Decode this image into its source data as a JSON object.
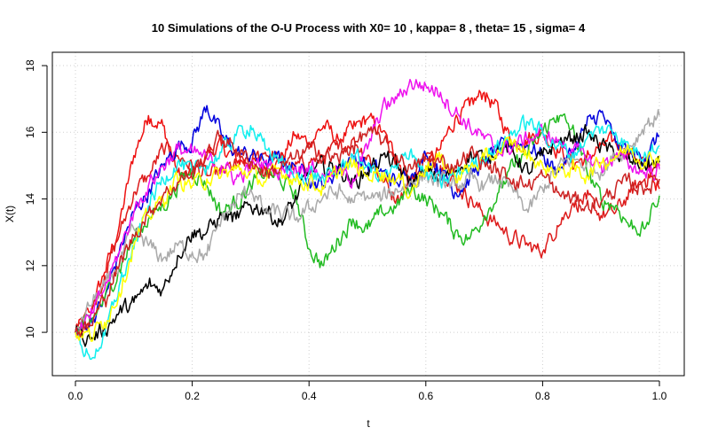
{
  "chart_data": {
    "type": "line",
    "title": "10 Simulations of the O-U Process with X0= 10 , kappa= 8 , theta= 15 , sigma= 4",
    "xlabel": "t",
    "ylabel": "X(t)",
    "xlim": [
      0,
      1
    ],
    "ylim": [
      8.7,
      18.4
    ],
    "x_ticks": [
      0.0,
      0.2,
      0.4,
      0.6,
      0.8,
      1.0
    ],
    "x_tick_labels": [
      "0.0",
      "0.2",
      "0.4",
      "0.6",
      "0.8",
      "1.0"
    ],
    "y_ticks": [
      10,
      12,
      14,
      16,
      18
    ],
    "y_tick_labels": [
      "10",
      "12",
      "14",
      "16",
      "18"
    ],
    "grid": true,
    "x": [
      0.0,
      0.025,
      0.05,
      0.075,
      0.1,
      0.125,
      0.15,
      0.175,
      0.2,
      0.225,
      0.25,
      0.275,
      0.3,
      0.325,
      0.35,
      0.375,
      0.4,
      0.425,
      0.45,
      0.475,
      0.5,
      0.525,
      0.55,
      0.575,
      0.6,
      0.625,
      0.65,
      0.675,
      0.7,
      0.725,
      0.75,
      0.775,
      0.8,
      0.825,
      0.85,
      0.875,
      0.9,
      0.925,
      0.95,
      0.975,
      1.0
    ],
    "series": [
      {
        "name": "red",
        "color": "#ee1111",
        "values": [
          10.0,
          10.6,
          11.8,
          13.2,
          15.3,
          16.5,
          16.2,
          14.8,
          14.6,
          15.4,
          15.6,
          15.2,
          15.1,
          14.9,
          15.1,
          15.9,
          15.7,
          16.2,
          15.8,
          16.1,
          16.4,
          16.0,
          15.2,
          14.6,
          14.9,
          15.5,
          16.4,
          16.8,
          17.2,
          16.6,
          15.6,
          15.8,
          16.0,
          15.5,
          15.1,
          15.2,
          15.6,
          15.7,
          15.4,
          15.1,
          14.3
        ]
      },
      {
        "name": "red-2",
        "color": "#dd1a1a",
        "values": [
          10.0,
          10.5,
          11.7,
          12.9,
          14.2,
          14.7,
          15.5,
          15.3,
          15.0,
          14.7,
          14.8,
          15.0,
          15.1,
          15.4,
          15.2,
          14.9,
          15.1,
          15.3,
          15.5,
          15.8,
          15.3,
          14.6,
          14.0,
          14.6,
          15.3,
          15.0,
          14.5,
          14.0,
          13.5,
          13.2,
          12.8,
          12.6,
          12.4,
          13.2,
          13.8,
          14.0,
          13.5,
          13.6,
          14.2,
          14.6,
          15.0
        ]
      },
      {
        "name": "blue",
        "color": "#0000dd",
        "values": [
          10.0,
          10.3,
          11.0,
          12.4,
          13.6,
          14.2,
          15.0,
          15.6,
          15.7,
          16.8,
          15.9,
          15.4,
          15.3,
          15.1,
          15.2,
          15.0,
          14.6,
          14.4,
          14.9,
          15.3,
          15.0,
          14.8,
          14.5,
          14.7,
          15.3,
          14.9,
          14.2,
          14.6,
          15.2,
          15.5,
          15.7,
          15.6,
          15.3,
          14.8,
          15.4,
          16.2,
          16.6,
          15.7,
          15.4,
          15.2,
          15.9
        ]
      },
      {
        "name": "green",
        "color": "#22bb22",
        "values": [
          10.0,
          10.3,
          11.0,
          11.9,
          12.8,
          13.4,
          13.8,
          14.4,
          14.9,
          14.4,
          13.6,
          13.9,
          14.4,
          14.8,
          14.6,
          14.2,
          12.5,
          12.0,
          12.8,
          13.4,
          13.1,
          13.6,
          13.8,
          14.3,
          14.0,
          13.6,
          13.0,
          12.8,
          13.5,
          14.2,
          15.0,
          15.4,
          16.0,
          16.5,
          16.1,
          14.9,
          14.0,
          13.8,
          13.2,
          13.1,
          14.1
        ]
      },
      {
        "name": "black",
        "color": "#000000",
        "values": [
          10.0,
          9.8,
          10.1,
          10.6,
          10.9,
          11.4,
          11.3,
          12.3,
          13.0,
          13.0,
          13.5,
          13.4,
          13.8,
          13.7,
          13.3,
          13.9,
          14.8,
          15.0,
          14.9,
          14.5,
          14.8,
          15.3,
          15.0,
          14.5,
          14.8,
          14.6,
          14.8,
          15.3,
          15.2,
          15.6,
          15.4,
          14.8,
          15.3,
          15.7,
          15.8,
          16.0,
          15.6,
          15.3,
          15.1,
          15.0,
          15.1
        ]
      },
      {
        "name": "gray",
        "color": "#aaaaaa",
        "values": [
          10.0,
          10.8,
          11.4,
          12.0,
          13.1,
          12.6,
          12.2,
          12.6,
          12.4,
          12.3,
          13.4,
          13.9,
          14.3,
          13.6,
          13.6,
          13.4,
          13.7,
          14.1,
          14.2,
          13.9,
          14.1,
          14.0,
          14.3,
          14.5,
          14.7,
          14.5,
          14.4,
          14.6,
          14.4,
          14.6,
          14.2,
          13.6,
          14.3,
          14.9,
          15.2,
          15.0,
          14.8,
          15.3,
          15.6,
          16.2,
          16.5
        ]
      },
      {
        "name": "magenta",
        "color": "#ee11ee",
        "values": [
          10.0,
          10.4,
          11.3,
          12.4,
          13.6,
          14.4,
          15.0,
          15.5,
          15.4,
          15.2,
          15.0,
          14.6,
          14.9,
          15.1,
          14.8,
          14.9,
          15.0,
          14.7,
          14.8,
          14.6,
          15.5,
          16.7,
          17.0,
          17.5,
          17.4,
          17.2,
          16.6,
          16.2,
          15.8,
          15.4,
          15.6,
          15.8,
          16.0,
          15.7,
          15.5,
          15.2,
          15.0,
          15.3,
          15.0,
          14.8,
          14.9
        ]
      },
      {
        "name": "cyan",
        "color": "#11eeee",
        "values": [
          10.0,
          9.2,
          9.9,
          11.4,
          12.5,
          13.8,
          14.6,
          15.1,
          14.8,
          15.0,
          15.4,
          15.9,
          16.2,
          15.5,
          15.2,
          14.6,
          14.8,
          14.6,
          14.8,
          15.3,
          15.0,
          14.6,
          14.9,
          15.5,
          14.7,
          14.5,
          14.7,
          15.0,
          15.3,
          15.6,
          16.0,
          16.3,
          16.0,
          15.6,
          15.3,
          15.8,
          16.1,
          16.0,
          15.5,
          15.4,
          15.6
        ]
      },
      {
        "name": "yellow",
        "color": "#ffff00",
        "values": [
          10.0,
          9.9,
          10.3,
          11.2,
          12.6,
          13.5,
          14.0,
          14.6,
          14.4,
          14.6,
          14.7,
          14.9,
          14.8,
          14.5,
          14.9,
          14.6,
          14.5,
          14.3,
          14.8,
          15.0,
          14.7,
          14.8,
          14.6,
          14.2,
          15.0,
          15.2,
          14.7,
          14.9,
          15.2,
          15.4,
          15.7,
          15.3,
          15.0,
          14.8,
          14.9,
          14.7,
          15.1,
          15.3,
          15.5,
          15.1,
          15.3
        ]
      },
      {
        "name": "red-3",
        "color": "#cc2222",
        "values": [
          10.0,
          10.2,
          11.0,
          12.0,
          12.9,
          13.6,
          14.1,
          14.5,
          14.8,
          15.3,
          15.9,
          15.5,
          15.1,
          14.8,
          14.9,
          15.2,
          15.5,
          15.3,
          15.2,
          15.6,
          16.0,
          15.7,
          15.3,
          14.9,
          15.2,
          15.1,
          15.0,
          15.4,
          15.1,
          14.8,
          14.6,
          14.4,
          14.7,
          14.2,
          14.0,
          13.8,
          13.9,
          14.3,
          14.5,
          14.3,
          14.6
        ]
      }
    ]
  }
}
